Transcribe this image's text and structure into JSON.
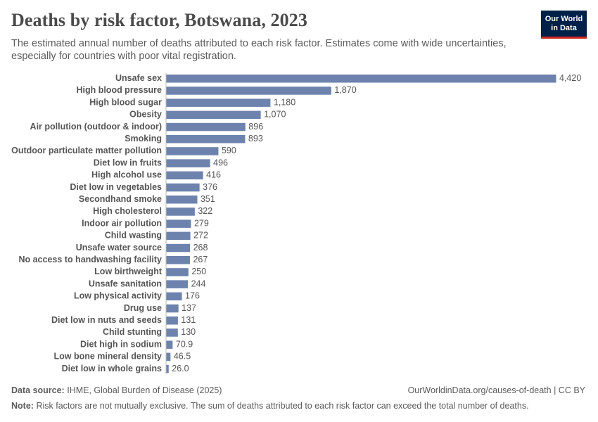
{
  "header": {
    "title": "Deaths by risk factor, Botswana, 2023",
    "subtitle": "The estimated annual number of deaths attributed to each risk factor. Estimates come with wide uncertainties, especially for countries with poor vital registration.",
    "logo_line1": "Our World",
    "logo_line2": "in Data"
  },
  "footer": {
    "source_label": "Data source:",
    "source_text": "IHME, Global Burden of Disease (2025)",
    "credit": "OurWorldinData.org/causes-of-death | CC BY",
    "note_label": "Note:",
    "note_text": "Risk factors are not mutually exclusive. The sum of deaths attributed to each risk factor can exceed the total number of deaths."
  },
  "colors": {
    "bar": "#6d83ad",
    "brand": "#002147",
    "accent": "#ce261e"
  },
  "chart_data": {
    "type": "bar",
    "orientation": "horizontal",
    "categories": [
      "Unsafe sex",
      "High blood pressure",
      "High blood sugar",
      "Obesity",
      "Air pollution (outdoor & indoor)",
      "Smoking",
      "Outdoor particulate matter pollution",
      "Diet low in fruits",
      "High alcohol use",
      "Diet low in vegetables",
      "Secondhand smoke",
      "High cholesterol",
      "Indoor air pollution",
      "Child wasting",
      "Unsafe water source",
      "No access to handwashing facility",
      "Low birthweight",
      "Unsafe sanitation",
      "Low physical activity",
      "Drug use",
      "Diet low in nuts and seeds",
      "Child stunting",
      "Diet high in sodium",
      "Low bone mineral density",
      "Diet low in whole grains"
    ],
    "values": [
      4420,
      1870,
      1180,
      1070,
      896,
      893,
      590,
      496,
      416,
      376,
      351,
      322,
      279,
      272,
      268,
      267,
      250,
      244,
      176,
      137,
      131,
      130,
      70.9,
      46.5,
      26.0
    ],
    "value_labels": [
      "4,420",
      "1,870",
      "1,180",
      "1,070",
      "896",
      "893",
      "590",
      "496",
      "416",
      "376",
      "351",
      "322",
      "279",
      "272",
      "268",
      "267",
      "250",
      "244",
      "176",
      "137",
      "131",
      "130",
      "70.9",
      "46.5",
      "26.0"
    ],
    "xlim": [
      0,
      4420
    ],
    "grid": false,
    "legend": "none"
  }
}
